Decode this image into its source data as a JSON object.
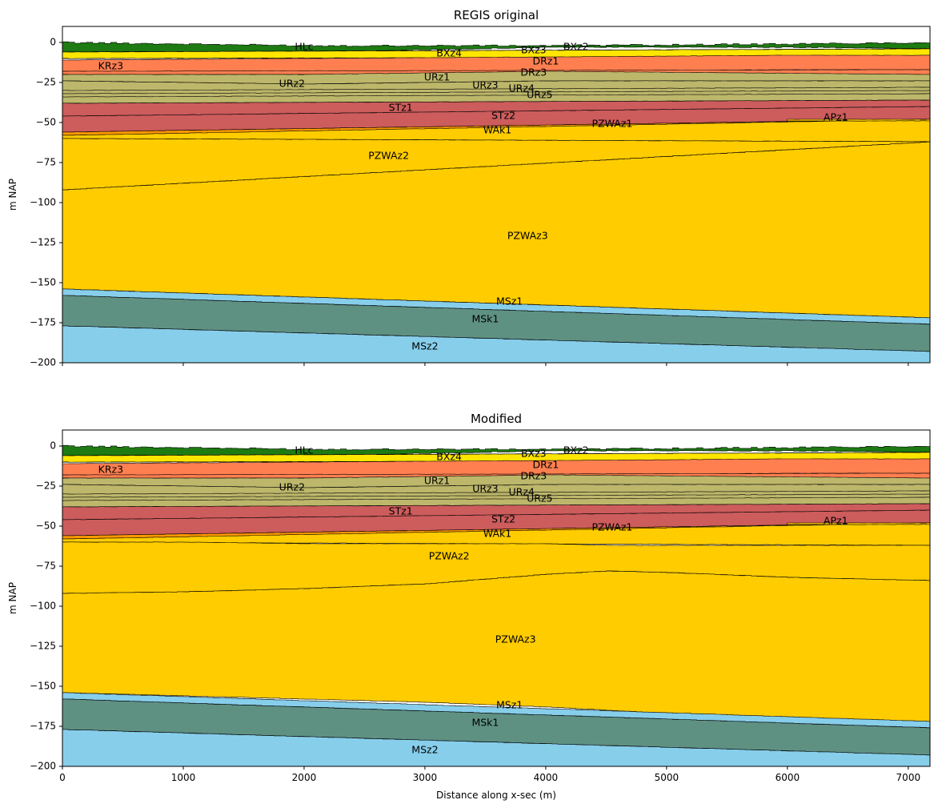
{
  "figure": {
    "xlabel": "Distance along x-sec (m)"
  },
  "chart_data": [
    {
      "type": "area",
      "title": "REGIS original",
      "ylabel": "m NAP",
      "xlim": [
        0,
        7180
      ],
      "ylim": [
        -200,
        10
      ],
      "xticks": [
        "0",
        "1000",
        "2000",
        "3000",
        "4000",
        "5000",
        "6000",
        "7000"
      ],
      "yticks": [
        "0",
        "−25",
        "−50",
        "−75",
        "−100",
        "−125",
        "−150",
        "−175",
        "−200"
      ],
      "layers": [
        {
          "name": "HLc",
          "color": "#1e7a12",
          "label_x": 2000,
          "label_y": -3,
          "x": [
            0,
            2000,
            4000,
            6000,
            7180
          ],
          "top": [
            0,
            -2,
            -2,
            -1,
            0
          ],
          "bottom": [
            -6,
            -6,
            -3,
            -3,
            -4
          ]
        },
        {
          "name": "BXz4",
          "color": "#ffeb00",
          "label_x": 3200,
          "label_y": -7,
          "x": [
            0,
            7180
          ],
          "top": [
            -6,
            -4
          ],
          "bottom": [
            -10,
            -9
          ]
        },
        {
          "name": "BXz3",
          "color": "#ffe33a",
          "label_x": 3900,
          "label_y": -5,
          "x": [
            0,
            7180
          ],
          "top": [
            -6,
            -4
          ],
          "bottom": [
            -10,
            -9
          ]
        },
        {
          "name": "BXz2",
          "color": "#ffe600",
          "label_x": 4250,
          "label_y": -3,
          "x": [
            0,
            7180
          ],
          "top": [
            -6,
            -4
          ],
          "bottom": [
            -10,
            -9
          ]
        },
        {
          "name": "KRz3",
          "color": "#b03060",
          "label_x": 400,
          "label_y": -15,
          "x": [
            0,
            1000
          ],
          "top": [
            -12,
            -12
          ],
          "bottom": [
            -20,
            -14
          ]
        },
        {
          "name": "DRz1",
          "color": "#ff7f50",
          "label_x": 4000,
          "label_y": -12,
          "x": [
            0,
            2000,
            4000,
            6000,
            7180
          ],
          "top": [
            -11,
            -10,
            -9,
            -8,
            -8
          ],
          "bottom": [
            -18,
            -19,
            -18,
            -17,
            -17
          ]
        },
        {
          "name": "DRz3",
          "color": "#ff7f50",
          "label_x": 3900,
          "label_y": -19,
          "x": [
            0,
            7180
          ],
          "top": [
            -18,
            -17
          ],
          "bottom": [
            -20,
            -20
          ]
        },
        {
          "name": "URz1",
          "color": "#bdb76b",
          "label_x": 3100,
          "label_y": -22,
          "x": [
            0,
            2000,
            4000,
            7180
          ],
          "top": [
            -20,
            -20,
            -18,
            -20
          ],
          "bottom": [
            -24,
            -26,
            -24,
            -24
          ]
        },
        {
          "name": "URz2",
          "color": "#bdb76b",
          "label_x": 1900,
          "label_y": -26,
          "x": [
            0,
            2000,
            4000,
            7180
          ],
          "top": [
            -24,
            -26,
            -24,
            -24
          ],
          "bottom": [
            -32,
            -30,
            -30,
            -28
          ]
        },
        {
          "name": "URz3",
          "color": "#bdb76b",
          "label_x": 3500,
          "label_y": -27,
          "x": [
            0,
            7180
          ],
          "top": [
            -30,
            -28
          ],
          "bottom": [
            -34,
            -32
          ]
        },
        {
          "name": "URz4",
          "color": "#bdb76b",
          "label_x": 3800,
          "label_y": -29,
          "x": [
            0,
            7180
          ],
          "top": [
            -32,
            -30
          ],
          "bottom": [
            -36,
            -32
          ]
        },
        {
          "name": "URz5",
          "color": "#bdb76b",
          "label_x": 3950,
          "label_y": -33,
          "x": [
            0,
            7180
          ],
          "top": [
            -34,
            -32
          ],
          "bottom": [
            -38,
            -36
          ]
        },
        {
          "name": "STz1",
          "color": "#cd5c5c",
          "label_x": 2800,
          "label_y": -41,
          "x": [
            0,
            7180
          ],
          "top": [
            -38,
            -36
          ],
          "bottom": [
            -46,
            -40
          ]
        },
        {
          "name": "STz2",
          "color": "#cd5c5c",
          "label_x": 3650,
          "label_y": -46,
          "x": [
            0,
            7180
          ],
          "top": [
            -46,
            -40
          ],
          "bottom": [
            -56,
            -48
          ]
        },
        {
          "name": "WAk1",
          "color": "#ff9900",
          "label_x": 3600,
          "label_y": -55,
          "x": [
            0,
            7180
          ],
          "top": [
            -56,
            -48
          ],
          "bottom": [
            -58,
            -50
          ]
        },
        {
          "name": "PZWAz1",
          "color": "#ffcc00",
          "label_x": 4550,
          "label_y": -51,
          "x": [
            0,
            7180
          ],
          "top": [
            -58,
            -48
          ],
          "bottom": [
            -60,
            -62
          ]
        },
        {
          "name": "APz1",
          "color": "#ffcc00",
          "label_x": 6400,
          "label_y": -47,
          "x": [
            6000,
            7180
          ],
          "top": [
            -48,
            -48
          ],
          "bottom": [
            -49,
            -49
          ]
        },
        {
          "name": "PZWAz2",
          "color": "#ffcc00",
          "label_x": 2700,
          "label_y": -71,
          "x": [
            0,
            7180
          ],
          "top": [
            -60,
            -62
          ],
          "bottom": [
            -92,
            -62
          ]
        },
        {
          "name": "PZWAz3",
          "color": "#ffcc00",
          "label_x": 3850,
          "label_y": -121,
          "x": [
            0,
            7180
          ],
          "top": [
            -92,
            -62
          ],
          "bottom": [
            -154,
            -172
          ]
        },
        {
          "name": "MSz1",
          "color": "#87ceeb",
          "label_x": 3700,
          "label_y": -162,
          "x": [
            0,
            7180
          ],
          "top": [
            -154,
            -172
          ],
          "bottom": [
            -158,
            -176
          ]
        },
        {
          "name": "MSk1",
          "color": "#5f9183",
          "label_x": 3500,
          "label_y": -173,
          "x": [
            0,
            7180
          ],
          "top": [
            -158,
            -176
          ],
          "bottom": [
            -177,
            -193
          ]
        },
        {
          "name": "MSz2",
          "color": "#87ceeb",
          "label_x": 3000,
          "label_y": -190,
          "x": [
            0,
            7180
          ],
          "top": [
            -177,
            -193
          ],
          "bottom": [
            -200,
            -200
          ]
        }
      ]
    },
    {
      "type": "area",
      "title": "Modified",
      "ylabel": "m NAP",
      "xlim": [
        0,
        7180
      ],
      "ylim": [
        -200,
        10
      ],
      "xticks": [
        "0",
        "1000",
        "2000",
        "3000",
        "4000",
        "5000",
        "6000",
        "7000"
      ],
      "yticks": [
        "0",
        "−25",
        "−50",
        "−75",
        "−100",
        "−125",
        "−150",
        "−175",
        "−200"
      ],
      "layers": [
        {
          "name": "HLc",
          "color": "#1e7a12",
          "label_x": 2000,
          "label_y": -3,
          "x": [
            0,
            2000,
            4000,
            6000,
            7180
          ],
          "top": [
            0,
            -2,
            -2,
            -1,
            0
          ],
          "bottom": [
            -6,
            -6,
            -3,
            -3,
            -4
          ]
        },
        {
          "name": "BXz4",
          "color": "#ffeb00",
          "label_x": 3200,
          "label_y": -7,
          "x": [
            0,
            7180
          ],
          "top": [
            -6,
            -4
          ],
          "bottom": [
            -10,
            -9
          ]
        },
        {
          "name": "BXz3",
          "color": "#ffe33a",
          "label_x": 3900,
          "label_y": -5,
          "x": [
            0,
            7180
          ],
          "top": [
            -6,
            -4
          ],
          "bottom": [
            -10,
            -9
          ]
        },
        {
          "name": "BXz2",
          "color": "#ffe600",
          "label_x": 4250,
          "label_y": -3,
          "x": [
            0,
            7180
          ],
          "top": [
            -6,
            -4
          ],
          "bottom": [
            -10,
            -9
          ]
        },
        {
          "name": "KRz3",
          "color": "#b03060",
          "label_x": 400,
          "label_y": -15,
          "x": [
            0,
            1000
          ],
          "top": [
            -12,
            -12
          ],
          "bottom": [
            -20,
            -14
          ]
        },
        {
          "name": "DRz1",
          "color": "#ff7f50",
          "label_x": 4000,
          "label_y": -12,
          "x": [
            0,
            2000,
            4000,
            6000,
            7180
          ],
          "top": [
            -11,
            -10,
            -9,
            -8,
            -8
          ],
          "bottom": [
            -18,
            -19,
            -18,
            -17,
            -17
          ]
        },
        {
          "name": "DRz3",
          "color": "#ff7f50",
          "label_x": 3900,
          "label_y": -19,
          "x": [
            0,
            7180
          ],
          "top": [
            -18,
            -17
          ],
          "bottom": [
            -20,
            -20
          ]
        },
        {
          "name": "URz1",
          "color": "#bdb76b",
          "label_x": 3100,
          "label_y": -22,
          "x": [
            0,
            2000,
            4000,
            7180
          ],
          "top": [
            -20,
            -20,
            -18,
            -20
          ],
          "bottom": [
            -24,
            -26,
            -24,
            -24
          ]
        },
        {
          "name": "URz2",
          "color": "#bdb76b",
          "label_x": 1900,
          "label_y": -26,
          "x": [
            0,
            2000,
            4000,
            7180
          ],
          "top": [
            -24,
            -26,
            -24,
            -24
          ],
          "bottom": [
            -32,
            -30,
            -30,
            -28
          ]
        },
        {
          "name": "URz3",
          "color": "#bdb76b",
          "label_x": 3500,
          "label_y": -27,
          "x": [
            0,
            7180
          ],
          "top": [
            -30,
            -28
          ],
          "bottom": [
            -34,
            -32
          ]
        },
        {
          "name": "URz4",
          "color": "#bdb76b",
          "label_x": 3800,
          "label_y": -29,
          "x": [
            0,
            7180
          ],
          "top": [
            -32,
            -30
          ],
          "bottom": [
            -36,
            -32
          ]
        },
        {
          "name": "URz5",
          "color": "#bdb76b",
          "label_x": 3950,
          "label_y": -33,
          "x": [
            0,
            7180
          ],
          "top": [
            -34,
            -32
          ],
          "bottom": [
            -38,
            -36
          ]
        },
        {
          "name": "STz1",
          "color": "#cd5c5c",
          "label_x": 2800,
          "label_y": -41,
          "x": [
            0,
            7180
          ],
          "top": [
            -38,
            -36
          ],
          "bottom": [
            -46,
            -40
          ]
        },
        {
          "name": "STz2",
          "color": "#cd5c5c",
          "label_x": 3650,
          "label_y": -46,
          "x": [
            0,
            7180
          ],
          "top": [
            -46,
            -40
          ],
          "bottom": [
            -56,
            -48
          ]
        },
        {
          "name": "WAk1",
          "color": "#ff9900",
          "label_x": 3600,
          "label_y": -55,
          "x": [
            0,
            7180
          ],
          "top": [
            -56,
            -48
          ],
          "bottom": [
            -58,
            -50
          ]
        },
        {
          "name": "PZWAz1",
          "color": "#ffcc00",
          "label_x": 4550,
          "label_y": -51,
          "x": [
            0,
            7180
          ],
          "top": [
            -58,
            -48
          ],
          "bottom": [
            -60,
            -62
          ]
        },
        {
          "name": "APz1",
          "color": "#ffcc00",
          "label_x": 6400,
          "label_y": -47,
          "x": [
            6000,
            7180
          ],
          "top": [
            -48,
            -48
          ],
          "bottom": [
            -49,
            -49
          ]
        },
        {
          "name": "PZWAz2",
          "color": "#ffcc00",
          "label_x": 3200,
          "label_y": -69,
          "x": [
            0,
            1000,
            2000,
            3000,
            4000,
            4500,
            5000,
            6000,
            7180
          ],
          "top": [
            -60,
            -60,
            -61,
            -61,
            -61,
            -62,
            -62,
            -62,
            -62
          ],
          "bottom": [
            -92,
            -91,
            -89,
            -86,
            -80,
            -78,
            -79,
            -82,
            -84
          ]
        },
        {
          "name": "PZWAz3",
          "color": "#ffcc00",
          "label_x": 3750,
          "label_y": -121,
          "x": [
            0,
            1000,
            2000,
            3000,
            4000,
            4500,
            5000,
            6000,
            7180
          ],
          "top": [
            -92,
            -91,
            -89,
            -86,
            -80,
            -78,
            -79,
            -82,
            -84
          ],
          "bottom": [
            -154,
            -156,
            -158,
            -160,
            -163,
            -165,
            -167,
            -170,
            -172
          ]
        },
        {
          "name": "MSz1",
          "color": "#87ceeb",
          "label_x": 3700,
          "label_y": -162,
          "x": [
            0,
            7180
          ],
          "top": [
            -154,
            -172
          ],
          "bottom": [
            -158,
            -176
          ]
        },
        {
          "name": "MSk1",
          "color": "#5f9183",
          "label_x": 3500,
          "label_y": -173,
          "x": [
            0,
            7180
          ],
          "top": [
            -158,
            -176
          ],
          "bottom": [
            -177,
            -193
          ]
        },
        {
          "name": "MSz2",
          "color": "#87ceeb",
          "label_x": 3000,
          "label_y": -190,
          "x": [
            0,
            7180
          ],
          "top": [
            -177,
            -193
          ],
          "bottom": [
            -200,
            -200
          ]
        }
      ]
    }
  ]
}
